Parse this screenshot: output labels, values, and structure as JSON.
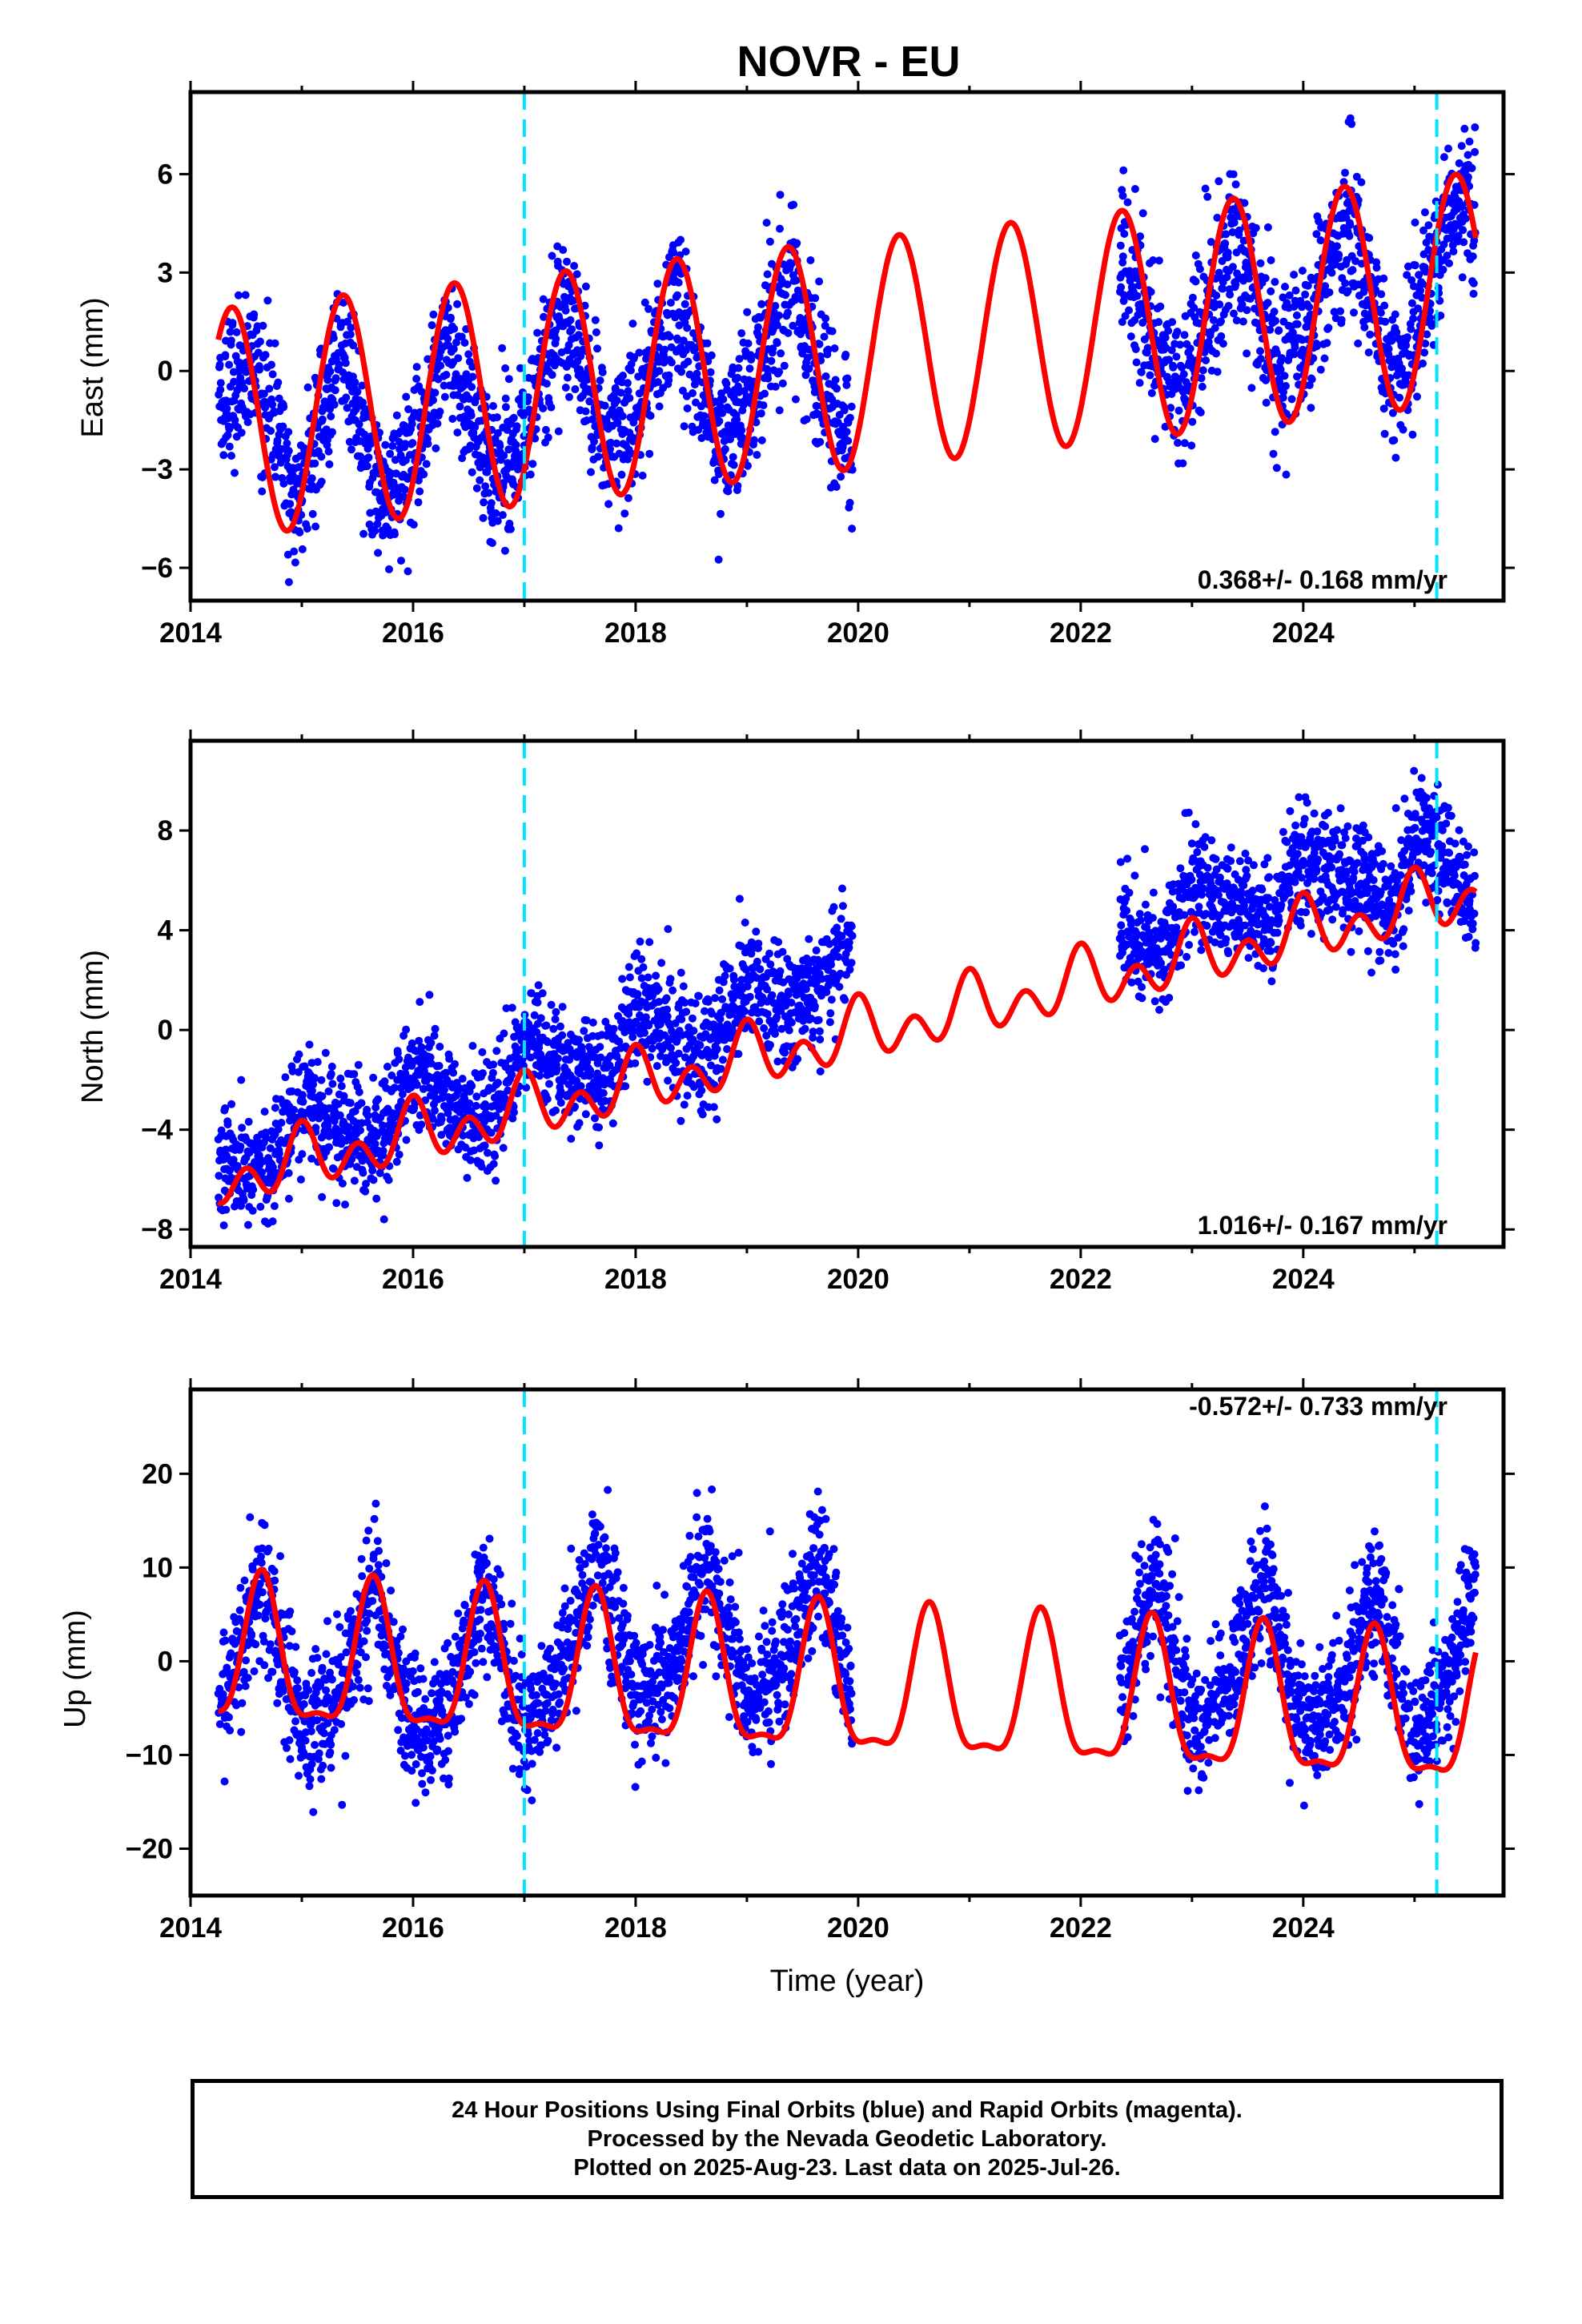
{
  "title": "NOVR - EU",
  "xlabel": "Time (year)",
  "colors": {
    "data": "#0000ff",
    "model": "#ff0000",
    "event": "#00e5ff",
    "frame": "#000000"
  },
  "caption": [
    "24 Hour Positions Using Final Orbits (blue) and Rapid Orbits (magenta).",
    "Processed by the Nevada Geodetic Laboratory.",
    "Plotted on 2025-Aug-23. Last data on 2025-Jul-26."
  ],
  "chart_data": [
    {
      "type": "scatter",
      "ylabel": "East (mm)",
      "rate_label": "0.368+/- 0.168 mm/yr",
      "rate_position": "bottom-right",
      "xlim": [
        2014.0,
        2025.8
      ],
      "ylim": [
        -7.0,
        8.5
      ],
      "x_ticks": [
        2014,
        2016,
        2018,
        2020,
        2022,
        2024
      ],
      "y_ticks": [
        -6,
        -3,
        0,
        3,
        6
      ],
      "event_lines_x": [
        2017.0,
        2025.2
      ],
      "data_gap": [
        2019.95,
        2022.35
      ],
      "series": [
        {
          "kind": "daily-positions",
          "x": [
            2014.25,
            2014.6,
            2014.95,
            2015.35,
            2015.7,
            2016.0,
            2016.35,
            2016.75,
            2017.0,
            2017.35,
            2017.75,
            2018.0,
            2018.35,
            2018.75,
            2019.0,
            2019.4,
            2019.8,
            2019.95,
            2022.4,
            2022.6,
            2022.9,
            2023.1,
            2023.4,
            2023.8,
            2024.0,
            2024.4,
            2024.8,
            2025.0,
            2025.4,
            2025.55
          ],
          "y": [
            -1.0,
            0.2,
            -4.3,
            0.8,
            -3.9,
            -2.5,
            1.0,
            -3.3,
            -2.0,
            2.1,
            -2.4,
            -1.5,
            2.4,
            -2.2,
            -0.8,
            2.8,
            -1.7,
            -1.8,
            3.3,
            1.5,
            -0.7,
            1.5,
            4.3,
            -0.4,
            1.0,
            4.6,
            -0.1,
            1.5,
            5.6,
            4.0
          ]
        },
        {
          "kind": "model-fit",
          "x0": 2014.25,
          "x1": 2025.55,
          "offset": -1.6,
          "offset_x": 2014.25,
          "trend": 0.368,
          "annual_amp": 3.5,
          "annual_peak": 2014.37,
          "semiannual_amp": 0.0,
          "semiannual_peak": 2014.37,
          "offsets": [
            {
              "x": 2017.0,
              "dy": 0.0
            },
            {
              "x": 2025.2,
              "dy": 0.0
            }
          ]
        }
      ]
    },
    {
      "type": "scatter",
      "ylabel": "North (mm)",
      "rate_label": "1.016+/- 0.167 mm/yr",
      "rate_position": "bottom-right",
      "xlim": [
        2014.0,
        2025.8
      ],
      "ylim": [
        -8.7,
        11.6
      ],
      "x_ticks": [
        2014,
        2016,
        2018,
        2020,
        2022,
        2024
      ],
      "y_ticks": [
        -8,
        -4,
        0,
        4,
        8
      ],
      "event_lines_x": [
        2017.0,
        2025.2
      ],
      "data_gap": [
        2019.95,
        2022.35
      ],
      "series": [
        {
          "kind": "daily-positions",
          "x": [
            2014.25,
            2014.7,
            2015.0,
            2015.4,
            2015.7,
            2016.0,
            2016.4,
            2016.7,
            2017.0,
            2017.4,
            2017.7,
            2018.0,
            2018.4,
            2018.7,
            2019.0,
            2019.4,
            2019.9,
            2022.4,
            2022.7,
            2023.0,
            2023.4,
            2023.7,
            2024.0,
            2024.4,
            2024.8,
            2025.1,
            2025.55
          ],
          "y": [
            -5.2,
            -5.7,
            -2.7,
            -4.2,
            -4.7,
            -1.8,
            -3.2,
            -3.7,
            -0.2,
            -1.5,
            -2.0,
            1.0,
            -0.5,
            -1.0,
            2.0,
            0.8,
            2.9,
            3.8,
            2.9,
            6.0,
            4.8,
            4.3,
            7.1,
            5.9,
            5.2,
            8.0,
            4.9
          ]
        },
        {
          "kind": "model-fit",
          "x0": 2014.25,
          "x1": 2025.55,
          "offset": -6.0,
          "offset_x": 2014.25,
          "trend": 1.016,
          "annual_amp": 0.7,
          "annual_peak": 2015.0,
          "semiannual_amp": 0.9,
          "semiannual_peak": 2015.0,
          "offsets": [
            {
              "x": 2017.0,
              "dy": 0.0
            },
            {
              "x": 2025.2,
              "dy": 0.0
            }
          ]
        }
      ]
    },
    {
      "type": "scatter",
      "ylabel": "Up (mm)",
      "rate_label": "-0.572+/- 0.733 mm/yr",
      "rate_position": "top-right",
      "xlim": [
        2014.0,
        2025.8
      ],
      "ylim": [
        -25.0,
        29.0
      ],
      "x_ticks": [
        2014,
        2016,
        2018,
        2020,
        2022,
        2024
      ],
      "y_ticks": [
        -20,
        -10,
        0,
        10,
        20
      ],
      "event_lines_x": [
        2017.0,
        2025.2
      ],
      "data_gap": [
        2019.95,
        2022.35
      ],
      "series": [
        {
          "kind": "daily-positions",
          "x": [
            2014.25,
            2014.65,
            2015.0,
            2015.3,
            2015.65,
            2016.0,
            2016.3,
            2016.65,
            2017.0,
            2017.3,
            2017.65,
            2018.0,
            2018.3,
            2018.65,
            2019.0,
            2019.3,
            2019.65,
            2019.95,
            2022.4,
            2022.65,
            2023.0,
            2023.3,
            2023.65,
            2024.0,
            2024.3,
            2024.65,
            2025.0,
            2025.3,
            2025.55
          ],
          "y": [
            -5.0,
            8.5,
            -7.0,
            -4.5,
            8.0,
            -8.0,
            -5.5,
            7.0,
            -8.0,
            -2.0,
            11.5,
            -3.5,
            -1.5,
            11.0,
            -4.5,
            -1.0,
            11.0,
            -4.5,
            -2.0,
            9.0,
            -7.0,
            -3.5,
            8.5,
            -7.0,
            -4.5,
            8.0,
            -8.0,
            -2.5,
            9.0
          ]
        },
        {
          "kind": "model-fit",
          "x0": 2014.25,
          "x1": 2025.55,
          "offset": 0.0,
          "offset_x": 2014.25,
          "trend": -0.572,
          "annual_amp": 7.5,
          "annual_peak": 2014.64,
          "semiannual_amp": 2.5,
          "semiannual_peak": 2014.64,
          "offsets": [
            {
              "x": 2017.0,
              "dy": 0.0
            },
            {
              "x": 2025.2,
              "dy": 0.0
            }
          ]
        }
      ]
    }
  ]
}
